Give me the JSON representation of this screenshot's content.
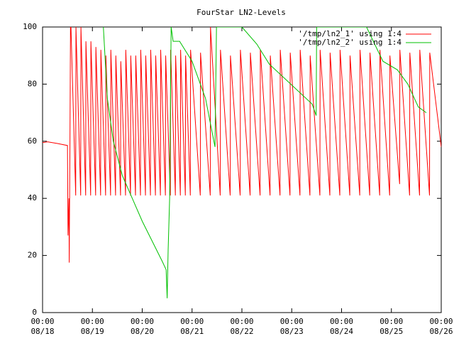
{
  "chart_data": {
    "type": "line",
    "title": "FourStar LN2-Levels",
    "xlim": [
      0,
      8
    ],
    "xticks": [
      {
        "value": 0,
        "label": "00:00\n08/18"
      },
      {
        "value": 1,
        "label": "00:00\n08/19"
      },
      {
        "value": 2,
        "label": "00:00\n08/20"
      },
      {
        "value": 3,
        "label": "00:00\n08/21"
      },
      {
        "value": 4,
        "label": "00:00\n08/22"
      },
      {
        "value": 5,
        "label": "00:00\n08/23"
      },
      {
        "value": 6,
        "label": "00:00\n08/24"
      },
      {
        "value": 7,
        "label": "00:00\n08/25"
      },
      {
        "value": 8,
        "label": "00:00\n08/26"
      }
    ],
    "ylim": [
      0,
      100
    ],
    "yticks": [
      0,
      20,
      40,
      60,
      80,
      100
    ],
    "legend": "upper right",
    "series": [
      {
        "name": "'/tmp/ln2_1' using 1:4",
        "color": "#ff0000",
        "x": [
          0,
          0.1,
          0.3,
          0.5,
          0.51,
          0.53,
          0.535,
          0.55,
          0.56,
          0.57,
          0.665,
          0.67,
          0.765,
          0.77,
          0.865,
          0.87,
          0.965,
          0.97,
          1.065,
          1.07,
          1.165,
          1.17,
          1.265,
          1.27,
          1.365,
          1.37,
          1.465,
          1.47,
          1.565,
          1.57,
          1.665,
          1.67,
          1.765,
          1.77,
          1.865,
          1.87,
          1.965,
          1.97,
          2.065,
          2.07,
          2.165,
          2.17,
          2.265,
          2.27,
          2.365,
          2.37,
          2.465,
          2.47,
          2.565,
          2.57,
          2.665,
          2.67,
          2.765,
          2.77,
          2.865,
          2.87,
          2.965,
          2.97,
          3.165,
          3.17,
          3.365,
          3.37,
          3.565,
          3.57,
          3.765,
          3.77,
          3.965,
          3.97,
          4.165,
          4.17,
          4.365,
          4.37,
          4.565,
          4.57,
          4.765,
          4.77,
          4.965,
          4.97,
          5.165,
          5.17,
          5.365,
          5.37,
          5.565,
          5.57,
          5.765,
          5.77,
          5.965,
          5.97,
          6.165,
          6.17,
          6.365,
          6.37,
          6.565,
          6.57,
          6.765,
          6.77,
          6.965,
          6.97,
          7.165,
          7.17,
          7.365,
          7.37,
          7.565,
          7.57,
          7.765,
          7.77,
          8.0
        ],
        "values": [
          59.5,
          59.8,
          59.2,
          58.5,
          27,
          40,
          17.5,
          60,
          100,
          100,
          41,
          100,
          41,
          100,
          41,
          95,
          41,
          95,
          41,
          93,
          41,
          92,
          41,
          90,
          41,
          92,
          41,
          90,
          41,
          88,
          41,
          92,
          41,
          90,
          41,
          90,
          41,
          92,
          41,
          90,
          41,
          92,
          41,
          90,
          41,
          92,
          41,
          90,
          41,
          92,
          41,
          90,
          41,
          92,
          41,
          90,
          41,
          92,
          41,
          91,
          41,
          100,
          41,
          92,
          41,
          90,
          41,
          92,
          41,
          91,
          41,
          92,
          41,
          90,
          41,
          92,
          41,
          91,
          41,
          92,
          41,
          90,
          41,
          92,
          41,
          91,
          41,
          92,
          41,
          90,
          41,
          92,
          41,
          91,
          41,
          92,
          41,
          90,
          45,
          92,
          41,
          91,
          41,
          92,
          41,
          91,
          58
        ]
      },
      {
        "name": "'/tmp/ln2_2' using 1:4",
        "color": "#00c000",
        "x": [
          1.22,
          1.3,
          1.42,
          1.6,
          1.8,
          2.0,
          2.2,
          2.4,
          2.48,
          2.5,
          2.52,
          2.55,
          2.58,
          2.62,
          2.75,
          3.0,
          3.27,
          3.46,
          3.49,
          4.0,
          4.3,
          4.55,
          4.98,
          5.41,
          5.49,
          5.5,
          6.0,
          6.5,
          6.83,
          7.12,
          7.33,
          7.54,
          7.7
        ],
        "values": [
          100,
          75,
          60,
          48,
          40,
          32,
          25,
          18,
          15,
          5,
          22,
          40,
          100,
          95,
          95,
          88,
          75,
          58,
          100,
          100,
          94,
          87,
          80,
          73,
          69,
          100,
          100,
          100,
          88,
          85,
          80,
          72,
          70
        ]
      }
    ]
  }
}
